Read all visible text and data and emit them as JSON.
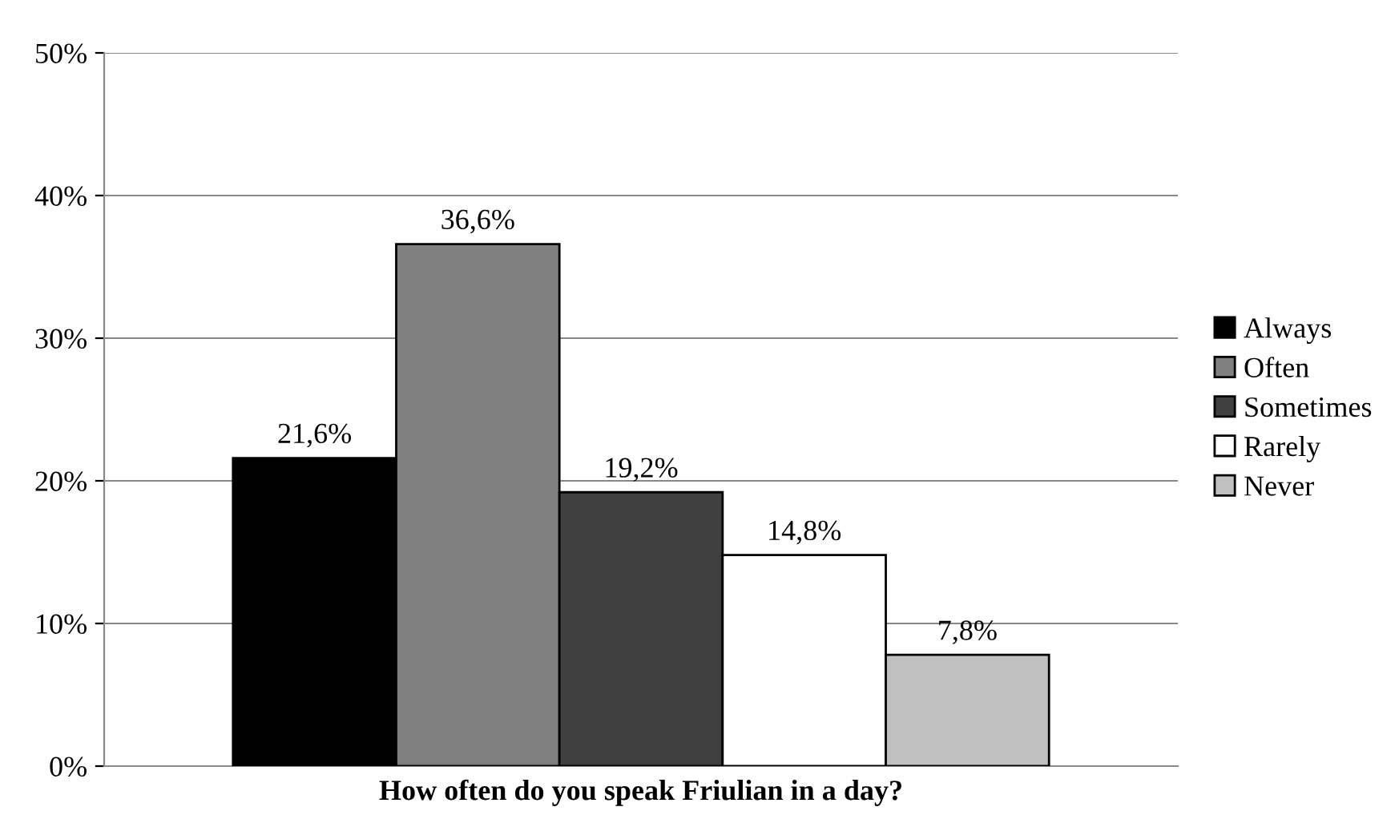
{
  "chart_data": {
    "type": "bar",
    "categories": [
      "How often do you speak Friulian in a day?"
    ],
    "series": [
      {
        "name": "Always",
        "color": "#000000",
        "values": [
          21.6
        ],
        "value_labels": [
          "21,6%"
        ]
      },
      {
        "name": "Often",
        "color": "#808080",
        "values": [
          36.6
        ],
        "value_labels": [
          "36,6%"
        ]
      },
      {
        "name": "Sometimes",
        "color": "#404040",
        "values": [
          19.2
        ],
        "value_labels": [
          "19,2%"
        ]
      },
      {
        "name": "Rarely",
        "color": "#ffffff",
        "values": [
          14.8
        ],
        "value_labels": [
          "14,8%"
        ]
      },
      {
        "name": "Never",
        "color": "#c0c0c0",
        "values": [
          7.8
        ],
        "value_labels": [
          "7,8%"
        ]
      }
    ],
    "ylim": [
      0,
      50
    ],
    "yticks": [
      {
        "value": 0,
        "label": "0%"
      },
      {
        "value": 10,
        "label": "10%"
      },
      {
        "value": 20,
        "label": "20%"
      },
      {
        "value": 30,
        "label": "30%"
      },
      {
        "value": 40,
        "label": "40%"
      },
      {
        "value": 50,
        "label": "50%"
      }
    ],
    "grid": "y",
    "legend": "right"
  }
}
